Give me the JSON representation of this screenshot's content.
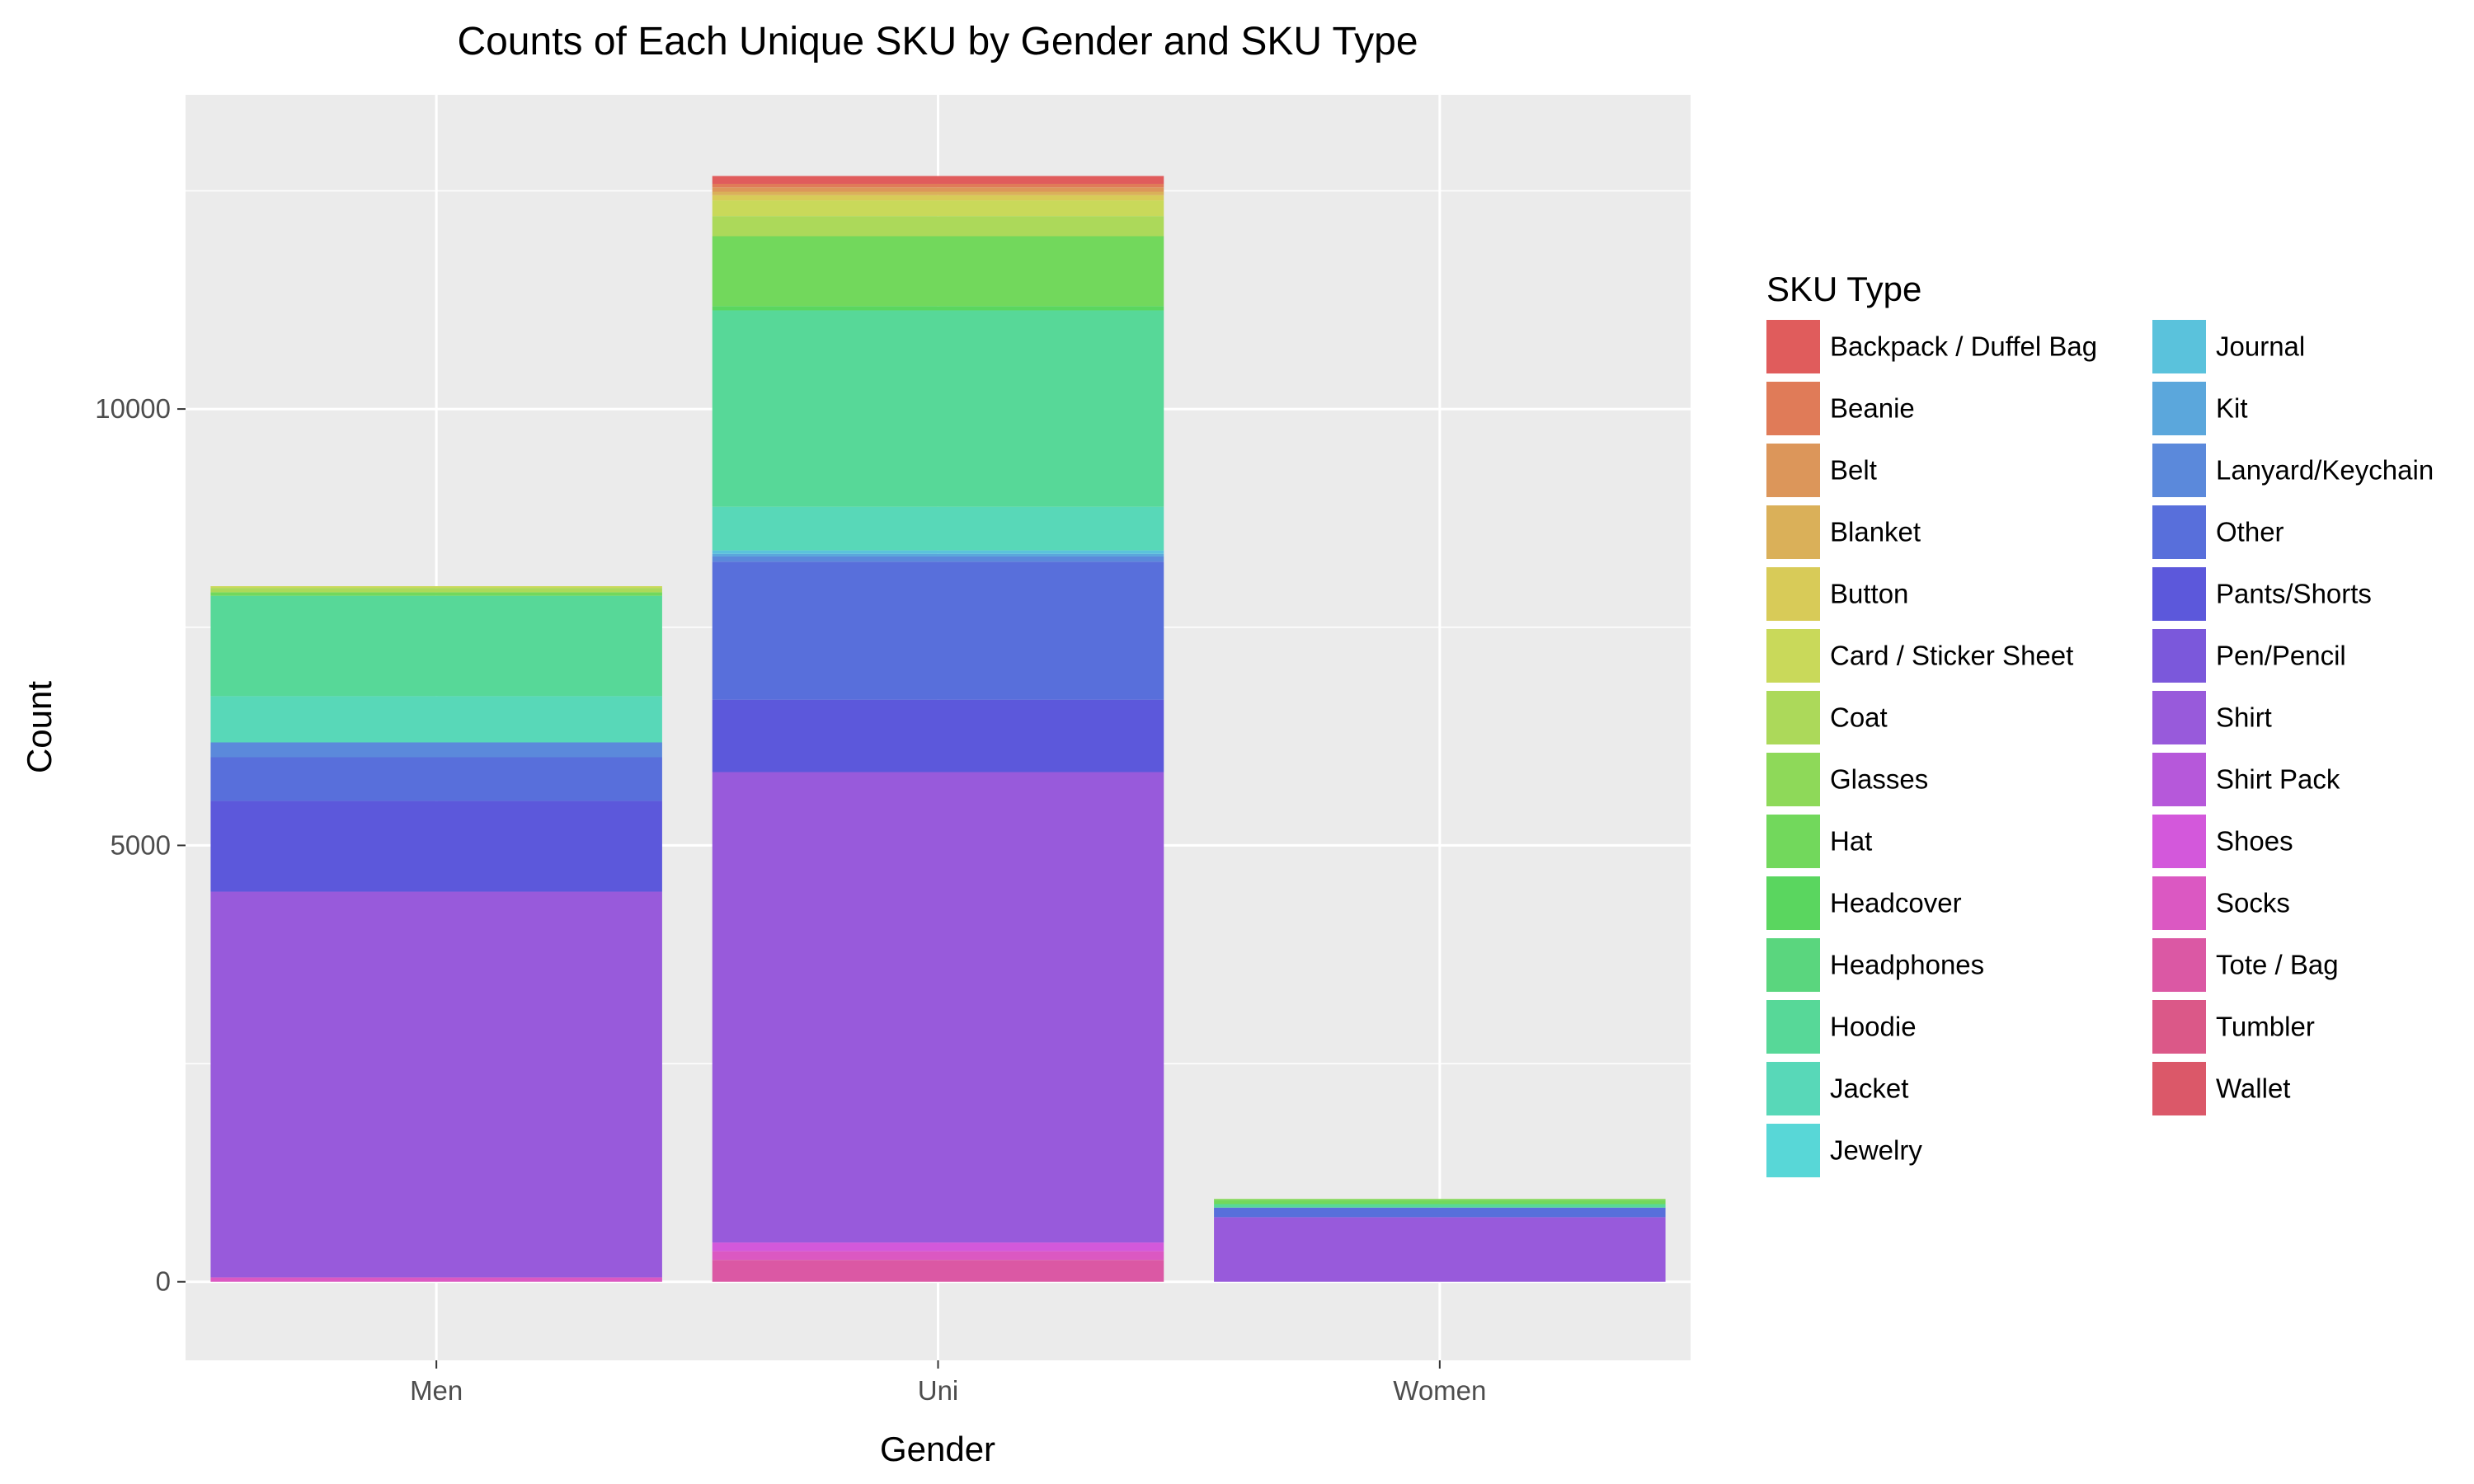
{
  "chart_data": {
    "type": "bar",
    "stacked": true,
    "title": "Counts of Each Unique SKU by Gender and SKU Type",
    "xlabel": "Gender",
    "ylabel": "Count",
    "categories": [
      "Men",
      "Uni",
      "Women"
    ],
    "ylim": [
      -900,
      13600
    ],
    "yticks": [
      0,
      5000,
      10000
    ],
    "grid": true,
    "legend": {
      "title": "SKU Type",
      "placement": "right",
      "columns": 2
    },
    "series": [
      {
        "name": "Backpack / Duffel Bag",
        "color": "#E05C5C",
        "values": [
          0,
          90,
          0
        ]
      },
      {
        "name": "Beanie",
        "color": "#E07B58",
        "values": [
          0,
          40,
          0
        ]
      },
      {
        "name": "Belt",
        "color": "#DC965A",
        "values": [
          0,
          50,
          0
        ]
      },
      {
        "name": "Blanket",
        "color": "#DAB059",
        "values": [
          0,
          40,
          0
        ]
      },
      {
        "name": "Button",
        "color": "#D8CB58",
        "values": [
          0,
          60,
          0
        ]
      },
      {
        "name": "Card / Sticker Sheet",
        "color": "#C9D95A",
        "values": [
          20,
          180,
          0
        ]
      },
      {
        "name": "Coat",
        "color": "#ACD95A",
        "values": [
          50,
          230,
          0
        ]
      },
      {
        "name": "Glasses",
        "color": "#8ED959",
        "values": [
          0,
          0,
          10
        ]
      },
      {
        "name": "Hat",
        "color": "#72D85C",
        "values": [
          40,
          800,
          50
        ]
      },
      {
        "name": "Headcover",
        "color": "#5AD65F",
        "values": [
          0,
          50,
          0
        ]
      },
      {
        "name": "Headphones",
        "color": "#5AD67E",
        "values": [
          0,
          0,
          0
        ]
      },
      {
        "name": "Hoodie",
        "color": "#57D898",
        "values": [
          1150,
          2250,
          40
        ]
      },
      {
        "name": "Jacket",
        "color": "#58D8B8",
        "values": [
          530,
          500,
          0
        ]
      },
      {
        "name": "Jewelry",
        "color": "#58D7D7",
        "values": [
          0,
          0,
          0
        ]
      },
      {
        "name": "Journal",
        "color": "#5AC2DC",
        "values": [
          0,
          40,
          0
        ]
      },
      {
        "name": "Kit",
        "color": "#5BA7DC",
        "values": [
          0,
          30,
          0
        ]
      },
      {
        "name": "Lanyard/Keychain",
        "color": "#5B89DB",
        "values": [
          170,
          60,
          0
        ]
      },
      {
        "name": "Other",
        "color": "#586FDB",
        "values": [
          500,
          1580,
          110
        ]
      },
      {
        "name": "Pants/Shorts",
        "color": "#5C58DB",
        "values": [
          1040,
          830,
          0
        ]
      },
      {
        "name": "Pen/Pencil",
        "color": "#7B58DB",
        "values": [
          0,
          0,
          0
        ]
      },
      {
        "name": "Shirt",
        "color": "#985ADB",
        "values": [
          4420,
          5390,
          740
        ]
      },
      {
        "name": "Shirt Pack",
        "color": "#B658DA",
        "values": [
          0,
          0,
          0
        ]
      },
      {
        "name": "Shoes",
        "color": "#D358DB",
        "values": [
          0,
          100,
          0
        ]
      },
      {
        "name": "Socks",
        "color": "#DB58C2",
        "values": [
          50,
          100,
          0
        ]
      },
      {
        "name": "Tote / Bag",
        "color": "#DB58A4",
        "values": [
          0,
          250,
          0
        ]
      },
      {
        "name": "Tumbler",
        "color": "#DB5888",
        "values": [
          0,
          0,
          0
        ]
      },
      {
        "name": "Wallet",
        "color": "#DB5869",
        "values": [
          0,
          0,
          0
        ]
      }
    ]
  }
}
